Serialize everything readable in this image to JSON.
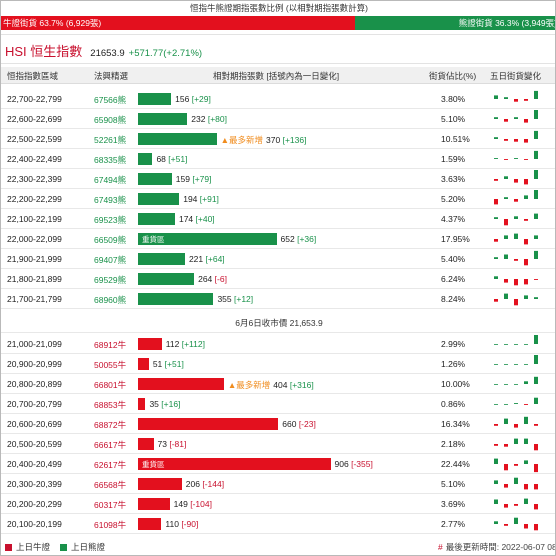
{
  "title": "恒指牛熊證期指張數比例 (以相對期指張數計算)",
  "ratio": {
    "bull_label": "牛證街貨 63.7% (6,929張)",
    "bull_pct": 63.7,
    "bear_label": "熊證街貨 36.3% (3,949張)",
    "bear_pct": 36.3
  },
  "index": {
    "name": "HSI 恒生指數",
    "value": "21653.9",
    "change": "+571.77(+2.71%)"
  },
  "headers": {
    "range": "恒指指數區域",
    "code": "法興精選",
    "qty": "相對期指張數 [括號內為一日變化]",
    "pct": "街貨佔比(%)",
    "trend": "五日街貨變化"
  },
  "bear_rows": [
    {
      "range": "22,700-22,799",
      "code": "67566熊",
      "qty": 156,
      "delta": "[+29]",
      "pct": "3.80%",
      "spark": [
        0.2,
        0.1,
        -0.15,
        -0.1,
        0.45
      ]
    },
    {
      "range": "22,600-22,699",
      "code": "65908熊",
      "qty": 232,
      "delta": "[+80]",
      "pct": "5.10%",
      "spark": [
        0.1,
        -0.15,
        0.1,
        -0.2,
        0.5
      ]
    },
    {
      "range": "22,500-22,599",
      "code": "52261熊",
      "qty": 370,
      "delta": "[+136]",
      "pct": "10.51%",
      "newest": "▲最多新增",
      "spark": [
        0.1,
        -0.1,
        -0.15,
        -0.2,
        0.45
      ]
    },
    {
      "range": "22,400-22,499",
      "code": "68335熊",
      "qty": 68,
      "delta": "[+51]",
      "pct": "1.59%",
      "spark": [
        0.05,
        -0.05,
        0.05,
        -0.05,
        0.45
      ]
    },
    {
      "range": "22,300-22,399",
      "code": "67494熊",
      "qty": 159,
      "delta": "[+79]",
      "pct": "3.63%",
      "spark": [
        -0.1,
        0.15,
        -0.2,
        -0.3,
        0.5
      ]
    },
    {
      "range": "22,200-22,299",
      "code": "67493熊",
      "qty": 194,
      "delta": "[+91]",
      "pct": "5.20%",
      "spark": [
        -0.3,
        0.1,
        -0.15,
        0.2,
        0.5
      ]
    },
    {
      "range": "22,100-22,199",
      "code": "69523熊",
      "qty": 174,
      "delta": "[+40]",
      "pct": "4.37%",
      "spark": [
        0.1,
        -0.35,
        0.15,
        -0.1,
        0.3
      ]
    },
    {
      "range": "22,000-22,099",
      "code": "66509熊",
      "qty": 652,
      "delta": "[+36]",
      "pct": "17.95%",
      "tag": "重貨區",
      "spark": [
        -0.15,
        0.2,
        0.3,
        -0.3,
        0.2
      ]
    },
    {
      "range": "21,900-21,999",
      "code": "69407熊",
      "qty": 221,
      "delta": "[+64]",
      "pct": "5.40%",
      "spark": [
        0.1,
        0.25,
        -0.1,
        -0.35,
        0.45
      ]
    },
    {
      "range": "21,800-21,899",
      "code": "69529熊",
      "qty": 264,
      "delta": "[-6]",
      "pct": "6.24%",
      "spark": [
        0.15,
        -0.2,
        -0.35,
        -0.3,
        -0.05
      ]
    },
    {
      "range": "21,700-21,799",
      "code": "68960熊",
      "qty": 355,
      "delta": "[+12]",
      "pct": "8.24%",
      "spark": [
        -0.15,
        0.3,
        -0.35,
        0.2,
        0.1
      ]
    }
  ],
  "divider": "6月6日收市價 21,653.9",
  "bull_rows": [
    {
      "range": "21,000-21,099",
      "code": "68912牛",
      "qty": 112,
      "delta": "[+112]",
      "pct": "2.99%",
      "spark": [
        0,
        0,
        0,
        0,
        0.6
      ]
    },
    {
      "range": "20,900-20,999",
      "code": "50055牛",
      "qty": 51,
      "delta": "[+51]",
      "pct": "1.26%",
      "spark": [
        0,
        0,
        0,
        0,
        0.5
      ]
    },
    {
      "range": "20,800-20,899",
      "code": "66801牛",
      "qty": 404,
      "delta": "[+316]",
      "pct": "10.00%",
      "newest": "▲最多新增",
      "spark": [
        0,
        0,
        0,
        0.15,
        0.4
      ]
    },
    {
      "range": "20,700-20,799",
      "code": "68853牛",
      "qty": 35,
      "delta": "[+16]",
      "pct": "0.86%",
      "spark": [
        0,
        0,
        0.05,
        -0.05,
        0.35
      ]
    },
    {
      "range": "20,600-20,699",
      "code": "68872牛",
      "qty": 660,
      "delta": "[-23]",
      "pct": "16.34%",
      "spark": [
        -0.1,
        0.3,
        -0.2,
        0.4,
        -0.1
      ]
    },
    {
      "range": "20,500-20,599",
      "code": "66617牛",
      "qty": 73,
      "delta": "[-81]",
      "pct": "2.18%",
      "spark": [
        -0.1,
        -0.15,
        0.3,
        0.3,
        -0.35
      ]
    },
    {
      "range": "20,400-20,499",
      "code": "62617牛",
      "qty": 906,
      "delta": "[-355]",
      "pct": "22.44%",
      "tag": "重貨區",
      "spark": [
        0.3,
        -0.35,
        -0.1,
        0.2,
        -0.45
      ]
    },
    {
      "range": "20,300-20,399",
      "code": "66568牛",
      "qty": 206,
      "delta": "[-144]",
      "pct": "5.10%",
      "spark": [
        0.2,
        -0.2,
        0.35,
        -0.3,
        -0.3
      ]
    },
    {
      "range": "20,200-20,299",
      "code": "60317牛",
      "qty": 149,
      "delta": "[-104]",
      "pct": "3.69%",
      "spark": [
        0.25,
        -0.2,
        -0.1,
        0.3,
        -0.3
      ]
    },
    {
      "range": "20,100-20,199",
      "code": "61098牛",
      "qty": 110,
      "delta": "[-90]",
      "pct": "2.77%",
      "spark": [
        0.15,
        -0.1,
        0.35,
        -0.25,
        -0.35
      ]
    }
  ],
  "legend": {
    "bull": "上日牛證",
    "bear": "上日熊證"
  },
  "updated": {
    "label": "最後更新時間: 2022-06-07 08:",
    "hash": "#"
  },
  "colors": {
    "bull": "#e3101e",
    "bear": "#19914a"
  }
}
